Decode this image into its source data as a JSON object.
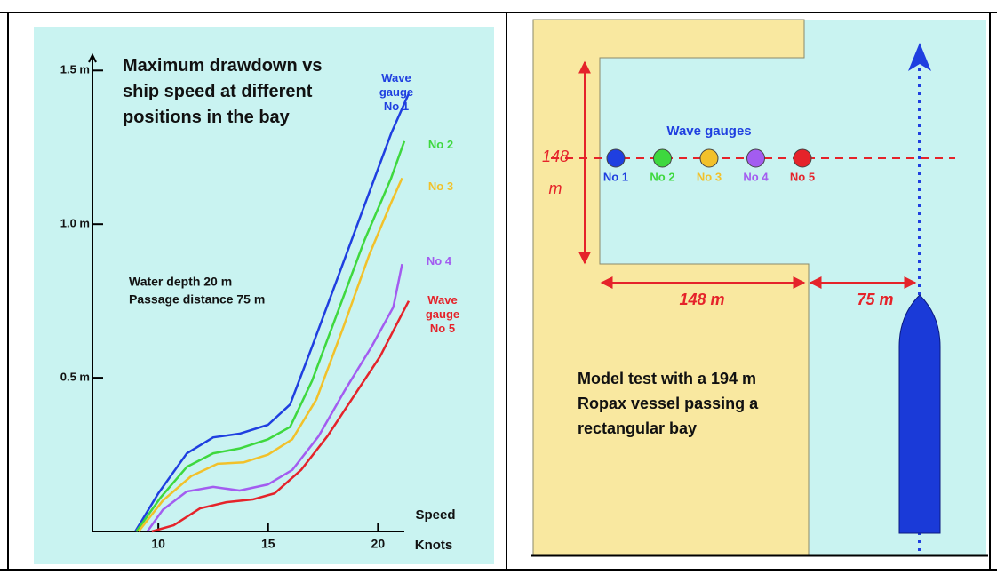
{
  "chart_data": {
    "type": "line",
    "title": "Maximum drawdown vs ship speed at different positions in the bay",
    "annotations": [
      "Water depth  20 m",
      "Passage distance 75 m"
    ],
    "xlabel": "Speed",
    "xunit": "Knots",
    "xlim": [
      7,
      21.2
    ],
    "ylim": [
      0,
      1.55
    ],
    "xticks": [
      10,
      15,
      20
    ],
    "yticks": [
      {
        "value": 0.5,
        "label": "0.5 m"
      },
      {
        "value": 1.0,
        "label": "1.0 m"
      },
      {
        "value": 1.5,
        "label": "1.5 m"
      }
    ],
    "series": [
      {
        "name": "Wave gauge No 1",
        "color": "#1f3fe0",
        "x": [
          8.95,
          10,
          11.3,
          12.5,
          13.7,
          15,
          16,
          17,
          18.2,
          19.4,
          20.6,
          21.4
        ],
        "values": [
          0,
          0.124,
          0.254,
          0.306,
          0.318,
          0.347,
          0.413,
          0.601,
          0.832,
          1.064,
          1.295,
          1.425
        ]
      },
      {
        "name": "No 2",
        "color": "#3ed83e",
        "x": [
          9,
          10.1,
          11.3,
          12.5,
          13.7,
          15,
          16,
          17,
          18.2,
          19.4,
          20.6,
          21.2
        ],
        "values": [
          0,
          0.11,
          0.21,
          0.254,
          0.27,
          0.3,
          0.34,
          0.49,
          0.72,
          0.95,
          1.15,
          1.27
        ]
      },
      {
        "name": "No 3",
        "color": "#f2c12a",
        "x": [
          9.1,
          10.2,
          11.5,
          12.7,
          13.9,
          15,
          16.1,
          17.2,
          18.4,
          19.6,
          20.6,
          21.1
        ],
        "values": [
          0,
          0.1,
          0.18,
          0.22,
          0.225,
          0.25,
          0.3,
          0.43,
          0.66,
          0.9,
          1.07,
          1.15
        ]
      },
      {
        "name": "No 4",
        "color": "#a35cf0",
        "x": [
          9.5,
          10.2,
          11.3,
          12.5,
          13.7,
          15,
          16.1,
          17.3,
          18.5,
          19.7,
          20.7,
          21.1
        ],
        "values": [
          0,
          0.07,
          0.13,
          0.145,
          0.133,
          0.153,
          0.2,
          0.31,
          0.46,
          0.6,
          0.73,
          0.87
        ]
      },
      {
        "name": "Wave gauge No 5",
        "color": "#e5232a",
        "x": [
          9.7,
          10.7,
          11.9,
          13.1,
          14.3,
          15.3,
          16.5,
          17.7,
          18.9,
          20.1,
          21.4
        ],
        "values": [
          0,
          0.02,
          0.075,
          0.095,
          0.104,
          0.124,
          0.2,
          0.31,
          0.44,
          0.57,
          0.75
        ]
      }
    ]
  },
  "diagram": {
    "title": "Wave gauges",
    "gauges": [
      {
        "label": "No 1",
        "color": "#1f3fe0"
      },
      {
        "label": "No 2",
        "color": "#3ed83e"
      },
      {
        "label": "No 3",
        "color": "#f2c12a"
      },
      {
        "label": "No 4",
        "color": "#a35cf0"
      },
      {
        "label": "No 5",
        "color": "#e5232a"
      }
    ],
    "bay_depth": "148 m",
    "bay_width": "148 m",
    "distance": "75 m",
    "caption": "Model test with a 194 m Ropax vessel passing a rectangular bay"
  }
}
